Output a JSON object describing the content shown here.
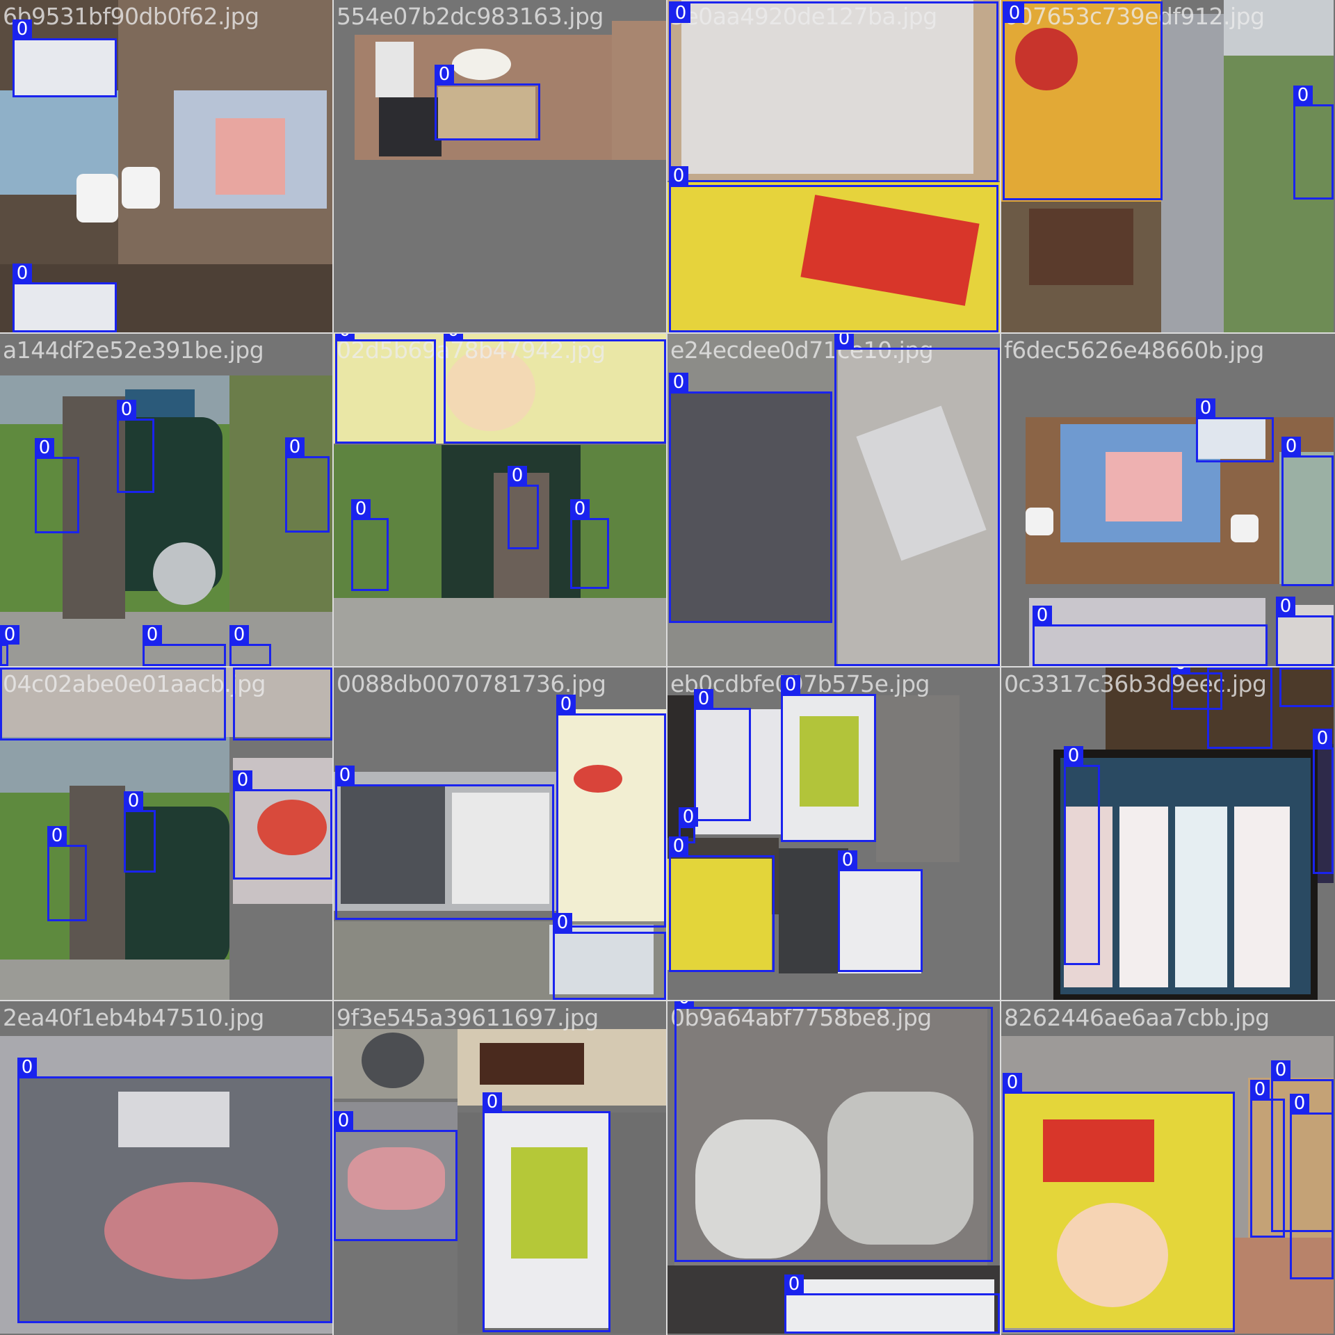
{
  "detection_class_label": "0",
  "colors": {
    "box": "#1a23ee",
    "label_text": "#ffffff",
    "background": "#737373"
  },
  "tiles": [
    {
      "filename": "6b9531bf90db0f62.jpg"
    },
    {
      "filename": "554e07b2dc983163.jpg"
    },
    {
      "filename": "5e0aa4920de127ba.jpg"
    },
    {
      "filename": "007653c739edf912.jpg"
    },
    {
      "filename": "a144df2e52e391be.jpg"
    },
    {
      "filename": "02d5b69a78b47942.jpg"
    },
    {
      "filename": "e24ecdee0d71ce10.jpg"
    },
    {
      "filename": "f6dec5626e48660b.jpg"
    },
    {
      "filename": "04c02abe0e01aacb.jpg"
    },
    {
      "filename": "0088db0070781736.jpg"
    },
    {
      "filename": "eb0cdbfe097b575e.jpg"
    },
    {
      "filename": "0c3317c36b3d9eec.jpg"
    },
    {
      "filename": "2ea40f1eb4b47510.jpg"
    },
    {
      "filename": "9f3e545a39611697.jpg"
    },
    {
      "filename": "0b9a64abf7758be8.jpg"
    },
    {
      "filename": "8262446ae6aa7cbb.jpg"
    }
  ]
}
